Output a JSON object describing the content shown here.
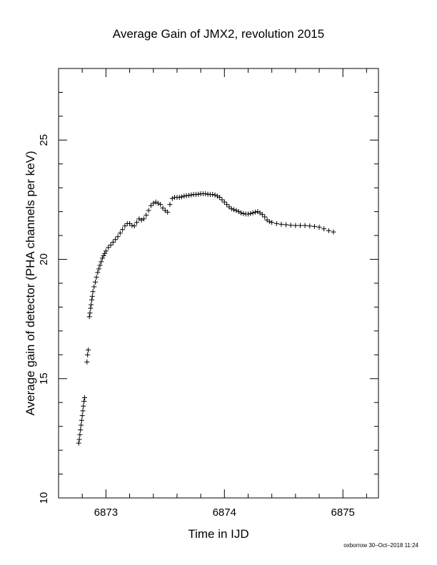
{
  "chart_data": {
    "type": "scatter",
    "title": "Average Gain of JMX2, revolution 2015",
    "xlabel": "Time in IJD",
    "ylabel": "Average gain of detector (PHA channels per keV)",
    "xlim": [
      6872.6,
      6875.3
    ],
    "ylim": [
      10,
      28
    ],
    "x_ticks": [
      6873,
      6874,
      6875
    ],
    "x_tick_labels": [
      "6873",
      "6874",
      "6875"
    ],
    "y_ticks": [
      10,
      15,
      20,
      25
    ],
    "y_tick_labels": [
      "10",
      "15",
      "20",
      "25"
    ],
    "grid": false,
    "marker": "+",
    "series_color": "#000000",
    "points": [
      [
        6872.77,
        12.3
      ],
      [
        6872.775,
        12.45
      ],
      [
        6872.78,
        12.65
      ],
      [
        6872.785,
        12.85
      ],
      [
        6872.79,
        13.05
      ],
      [
        6872.795,
        13.25
      ],
      [
        6872.8,
        13.45
      ],
      [
        6872.805,
        13.65
      ],
      [
        6872.81,
        13.85
      ],
      [
        6872.815,
        14.05
      ],
      [
        6872.82,
        14.2
      ],
      [
        6872.84,
        15.7
      ],
      [
        6872.845,
        16.0
      ],
      [
        6872.85,
        16.2
      ],
      [
        6872.86,
        17.6
      ],
      [
        6872.865,
        17.75
      ],
      [
        6872.87,
        17.95
      ],
      [
        6872.875,
        18.1
      ],
      [
        6872.88,
        18.3
      ],
      [
        6872.885,
        18.45
      ],
      [
        6872.89,
        18.65
      ],
      [
        6872.9,
        18.85
      ],
      [
        6872.91,
        19.05
      ],
      [
        6872.92,
        19.25
      ],
      [
        6872.93,
        19.45
      ],
      [
        6872.94,
        19.6
      ],
      [
        6872.95,
        19.75
      ],
      [
        6872.96,
        19.9
      ],
      [
        6872.97,
        20.05
      ],
      [
        6872.98,
        20.15
      ],
      [
        6872.99,
        20.25
      ],
      [
        6873.0,
        20.35
      ],
      [
        6873.02,
        20.5
      ],
      [
        6873.04,
        20.6
      ],
      [
        6873.06,
        20.72
      ],
      [
        6873.08,
        20.83
      ],
      [
        6873.1,
        20.95
      ],
      [
        6873.12,
        21.1
      ],
      [
        6873.14,
        21.25
      ],
      [
        6873.16,
        21.4
      ],
      [
        6873.18,
        21.5
      ],
      [
        6873.2,
        21.5
      ],
      [
        6873.22,
        21.42
      ],
      [
        6873.24,
        21.4
      ],
      [
        6873.26,
        21.55
      ],
      [
        6873.28,
        21.7
      ],
      [
        6873.3,
        21.65
      ],
      [
        6873.32,
        21.7
      ],
      [
        6873.34,
        21.85
      ],
      [
        6873.36,
        22.05
      ],
      [
        6873.38,
        22.25
      ],
      [
        6873.4,
        22.35
      ],
      [
        6873.42,
        22.4
      ],
      [
        6873.44,
        22.35
      ],
      [
        6873.46,
        22.3
      ],
      [
        6873.48,
        22.15
      ],
      [
        6873.5,
        22.05
      ],
      [
        6873.52,
        21.98
      ],
      [
        6873.54,
        22.3
      ],
      [
        6873.56,
        22.55
      ],
      [
        6873.58,
        22.6
      ],
      [
        6873.6,
        22.6
      ],
      [
        6873.62,
        22.6
      ],
      [
        6873.64,
        22.62
      ],
      [
        6873.66,
        22.65
      ],
      [
        6873.68,
        22.67
      ],
      [
        6873.7,
        22.68
      ],
      [
        6873.72,
        22.7
      ],
      [
        6873.74,
        22.72
      ],
      [
        6873.76,
        22.72
      ],
      [
        6873.78,
        22.73
      ],
      [
        6873.8,
        22.75
      ],
      [
        6873.82,
        22.75
      ],
      [
        6873.84,
        22.75
      ],
      [
        6873.86,
        22.73
      ],
      [
        6873.88,
        22.72
      ],
      [
        6873.9,
        22.72
      ],
      [
        6873.92,
        22.7
      ],
      [
        6873.94,
        22.65
      ],
      [
        6873.96,
        22.6
      ],
      [
        6873.98,
        22.5
      ],
      [
        6874.0,
        22.4
      ],
      [
        6874.02,
        22.3
      ],
      [
        6874.04,
        22.2
      ],
      [
        6874.06,
        22.12
      ],
      [
        6874.08,
        22.08
      ],
      [
        6874.1,
        22.05
      ],
      [
        6874.12,
        22.0
      ],
      [
        6874.14,
        21.95
      ],
      [
        6874.16,
        21.92
      ],
      [
        6874.18,
        21.9
      ],
      [
        6874.2,
        21.9
      ],
      [
        6874.22,
        21.92
      ],
      [
        6874.24,
        21.95
      ],
      [
        6874.26,
        21.98
      ],
      [
        6874.28,
        22.0
      ],
      [
        6874.3,
        21.95
      ],
      [
        6874.32,
        21.88
      ],
      [
        6874.34,
        21.78
      ],
      [
        6874.36,
        21.65
      ],
      [
        6874.38,
        21.58
      ],
      [
        6874.4,
        21.55
      ],
      [
        6874.44,
        21.5
      ],
      [
        6874.48,
        21.47
      ],
      [
        6874.52,
        21.45
      ],
      [
        6874.56,
        21.43
      ],
      [
        6874.6,
        21.42
      ],
      [
        6874.64,
        21.42
      ],
      [
        6874.68,
        21.42
      ],
      [
        6874.72,
        21.4
      ],
      [
        6874.76,
        21.38
      ],
      [
        6874.8,
        21.35
      ],
      [
        6874.84,
        21.28
      ],
      [
        6874.88,
        21.2
      ],
      [
        6874.92,
        21.15
      ]
    ]
  },
  "footer": {
    "stamp": "oxborrow 30–Oct–2018 11:24"
  }
}
